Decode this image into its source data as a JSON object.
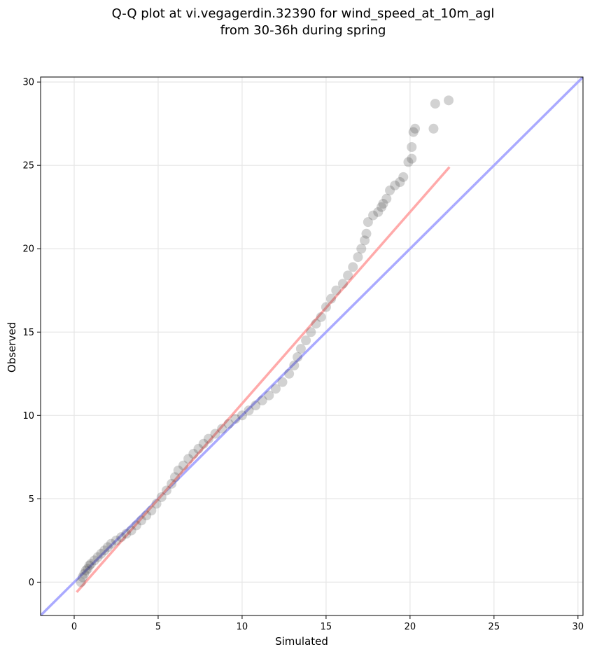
{
  "chart_data": {
    "type": "scatter",
    "title": [
      "Q-Q plot at vi.vegagerdin.32390 for wind_speed_at_10m_agl",
      "from 30-36h during spring"
    ],
    "xlabel": "Simulated",
    "ylabel": "Observed",
    "xlim": [
      -2.0,
      30.3
    ],
    "ylim": [
      -2.0,
      30.3
    ],
    "xticks": [
      0,
      5,
      10,
      15,
      20,
      25,
      30
    ],
    "yticks": [
      0,
      5,
      10,
      15,
      20,
      25,
      30
    ],
    "grid": true,
    "legend": "none",
    "point_color": "#333333",
    "series": [
      {
        "values_xy": [
          [
            0.4,
            0.0
          ],
          [
            0.5,
            0.3
          ],
          [
            0.6,
            0.5
          ],
          [
            0.7,
            0.7
          ],
          [
            0.8,
            0.8
          ],
          [
            0.9,
            1.0
          ],
          [
            1.0,
            1.1
          ],
          [
            1.2,
            1.3
          ],
          [
            1.4,
            1.5
          ],
          [
            1.6,
            1.7
          ],
          [
            1.8,
            1.9
          ],
          [
            2.0,
            2.1
          ],
          [
            2.2,
            2.3
          ],
          [
            2.5,
            2.5
          ],
          [
            2.8,
            2.7
          ],
          [
            3.1,
            2.9
          ],
          [
            3.4,
            3.1
          ],
          [
            3.7,
            3.4
          ],
          [
            4.0,
            3.7
          ],
          [
            4.3,
            4.0
          ],
          [
            4.6,
            4.3
          ],
          [
            4.9,
            4.7
          ],
          [
            5.2,
            5.1
          ],
          [
            5.5,
            5.5
          ],
          [
            5.8,
            5.9
          ],
          [
            6.0,
            6.3
          ],
          [
            6.2,
            6.7
          ],
          [
            6.5,
            7.0
          ],
          [
            6.8,
            7.4
          ],
          [
            7.1,
            7.7
          ],
          [
            7.4,
            8.0
          ],
          [
            7.7,
            8.3
          ],
          [
            8.0,
            8.6
          ],
          [
            8.4,
            8.9
          ],
          [
            8.8,
            9.2
          ],
          [
            9.2,
            9.5
          ],
          [
            9.6,
            9.8
          ],
          [
            10.0,
            10.0
          ],
          [
            10.4,
            10.3
          ],
          [
            10.8,
            10.6
          ],
          [
            11.2,
            10.9
          ],
          [
            11.6,
            11.2
          ],
          [
            12.0,
            11.6
          ],
          [
            12.4,
            12.0
          ],
          [
            12.8,
            12.5
          ],
          [
            13.1,
            13.0
          ],
          [
            13.3,
            13.5
          ],
          [
            13.5,
            14.0
          ],
          [
            13.8,
            14.5
          ],
          [
            14.1,
            15.0
          ],
          [
            14.4,
            15.5
          ],
          [
            14.7,
            15.9
          ],
          [
            15.0,
            16.5
          ],
          [
            15.3,
            17.0
          ],
          [
            15.6,
            17.5
          ],
          [
            16.0,
            17.9
          ],
          [
            16.3,
            18.4
          ],
          [
            16.6,
            18.9
          ],
          [
            16.9,
            19.5
          ],
          [
            17.1,
            20.0
          ],
          [
            17.3,
            20.5
          ],
          [
            17.4,
            20.9
          ],
          [
            17.5,
            21.6
          ],
          [
            17.8,
            22.0
          ],
          [
            18.1,
            22.2
          ],
          [
            18.3,
            22.5
          ],
          [
            18.4,
            22.7
          ],
          [
            18.6,
            23.0
          ],
          [
            18.8,
            23.5
          ],
          [
            19.1,
            23.8
          ],
          [
            19.4,
            24.0
          ],
          [
            19.6,
            24.3
          ],
          [
            19.9,
            25.2
          ],
          [
            20.1,
            25.4
          ],
          [
            20.1,
            26.1
          ],
          [
            20.2,
            27.0
          ],
          [
            20.3,
            27.2
          ],
          [
            21.4,
            27.2
          ],
          [
            21.5,
            28.7
          ],
          [
            22.3,
            28.9
          ]
        ]
      }
    ],
    "reference_lines": [
      {
        "type": "identity",
        "color": "#aaaaff",
        "from": [
          -2.0,
          -2.0
        ],
        "to": [
          30.3,
          30.3
        ]
      },
      {
        "type": "fit",
        "color": "#ffaaaa",
        "from": [
          0.15,
          -0.6
        ],
        "to": [
          22.35,
          24.9
        ]
      }
    ]
  }
}
